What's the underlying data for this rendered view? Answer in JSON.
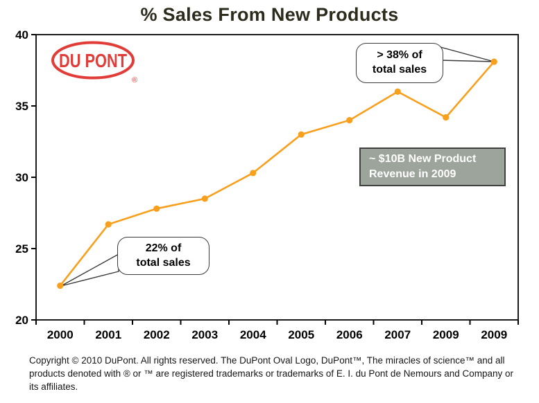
{
  "title": "% Sales From New Products",
  "logo": {
    "text": "DU PONT",
    "registered_mark": "®",
    "color": "#e13c38"
  },
  "chart_data": {
    "type": "line",
    "title": "% Sales From New Products",
    "xlabel": "",
    "ylabel": "",
    "categories": [
      "2000",
      "2001",
      "2002",
      "2003",
      "2004",
      "2005",
      "2006",
      "2007",
      "2009",
      "2009"
    ],
    "series": [
      {
        "name": "% sales from new products",
        "values": [
          22.4,
          26.7,
          27.8,
          28.5,
          30.3,
          33,
          34,
          36,
          34.2,
          38.1
        ]
      }
    ],
    "ylim": [
      20,
      40
    ],
    "yticks": [
      20,
      25,
      30,
      35,
      40
    ],
    "grid": false,
    "legend": "none",
    "line_color": "#f8a01d",
    "marker": "circle"
  },
  "annotations": {
    "callout_2009": {
      "line1": "> 38% of",
      "line2": "total sales"
    },
    "callout_2000": {
      "line1": "22% of",
      "line2": "total sales"
    },
    "revenue_box": {
      "line1": "~ $10B New Product",
      "line2": "Revenue in 2009",
      "bg": "#9ca49c",
      "border": "#3f3f3f",
      "text_color": "#ffffff"
    }
  },
  "footer": {
    "copyright": "Copyright © 2010 DuPont. All rights reserved. The DuPont Oval Logo, DuPont™, The miracles of science™ and all products denoted with ® or ™ are registered trademarks or trademarks of E. I. du Pont de Nemours and Company or its affiliates."
  }
}
